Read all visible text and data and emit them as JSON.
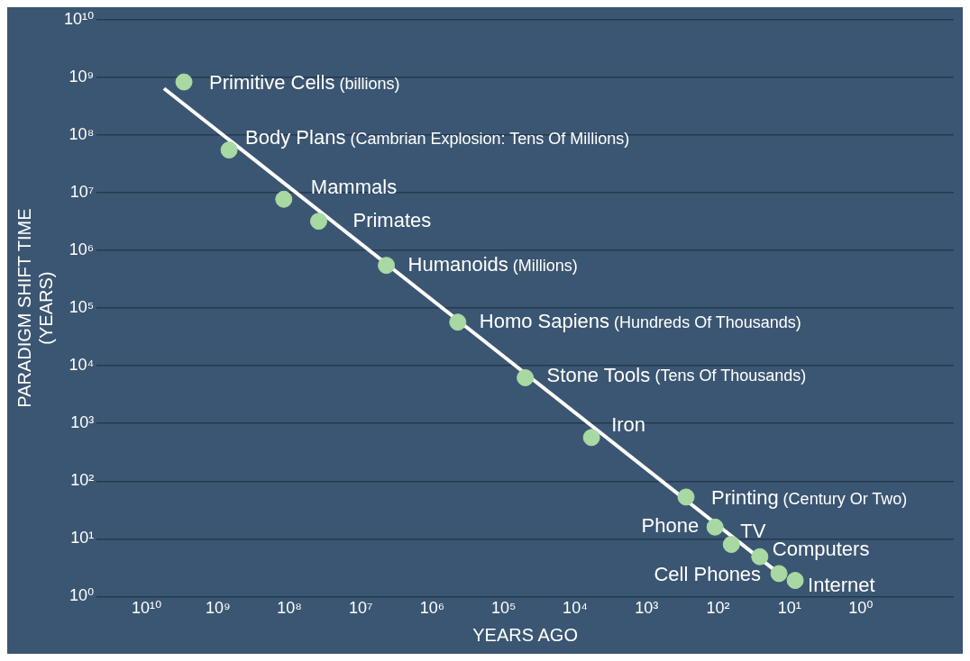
{
  "chart_data": {
    "type": "scatter",
    "xlabel": "YEARS AGO",
    "ylabel": "PARADIGM SHIFT TIME\n(YEARS)",
    "log": "xy",
    "grid": "y",
    "legend": false,
    "marker": "circle",
    "xlim": [
      50000000000,
      0.05
    ],
    "ylim": [
      1,
      10000000000
    ],
    "xticks": [
      {
        "value": 10000000000,
        "label": "10¹⁰"
      },
      {
        "value": 1000000000,
        "label": "10⁹"
      },
      {
        "value": 100000000,
        "label": "10⁸"
      },
      {
        "value": 10000000,
        "label": "10⁷"
      },
      {
        "value": 1000000,
        "label": "10⁶"
      },
      {
        "value": 100000,
        "label": "10⁵"
      },
      {
        "value": 10000,
        "label": "10⁴"
      },
      {
        "value": 1000,
        "label": "10³"
      },
      {
        "value": 100,
        "label": "10²"
      },
      {
        "value": 10,
        "label": "10¹"
      },
      {
        "value": 1,
        "label": "10⁰"
      }
    ],
    "yticks": [
      {
        "value": 1,
        "label": "10⁰"
      },
      {
        "value": 10,
        "label": "10¹"
      },
      {
        "value": 100,
        "label": "10²"
      },
      {
        "value": 1000,
        "label": "10³"
      },
      {
        "value": 10000,
        "label": "10⁴"
      },
      {
        "value": 100000,
        "label": "10⁵"
      },
      {
        "value": 1000000,
        "label": "10⁶"
      },
      {
        "value": 10000000,
        "label": "10⁷"
      },
      {
        "value": 100000000,
        "label": "10⁸"
      },
      {
        "value": 1000000000,
        "label": "10⁹"
      },
      {
        "value": 10000000000,
        "label": "10¹⁰"
      }
    ],
    "series": [
      {
        "type": "line",
        "color": "#ffffff",
        "marker": "none",
        "x": [
          5700000000,
          14
        ],
        "values": [
          640000000,
          2.5
        ]
      },
      {
        "type": "scatter",
        "color": "#a9d9a2",
        "x": [
          3000000000,
          700000000,
          120000000,
          39000000,
          4400000,
          440000,
          50000,
          5900,
          280,
          110,
          65,
          26,
          14,
          8.3
        ],
        "values": [
          830000000,
          55000000,
          7700000,
          3200000,
          550000,
          57000,
          6200,
          570,
          53,
          16,
          8,
          4.9,
          2.5,
          1.9
        ]
      }
    ],
    "annotations": [
      {
        "text": "Primitive Cells (billions)",
        "x": 3000000000,
        "y": 830000000
      },
      {
        "text": "Body Plans (Cambrian Explosion: Tens Of Millions)",
        "x": 700000000,
        "y": 55000000
      },
      {
        "text": "Mammals",
        "x": 120000000,
        "y": 7700000
      },
      {
        "text": "Primates",
        "x": 39000000,
        "y": 3200000
      },
      {
        "text": "Humanoids (Millions)",
        "x": 4400000,
        "y": 550000
      },
      {
        "text": "Homo Sapiens (Hundreds Of Thousands)",
        "x": 440000,
        "y": 57000
      },
      {
        "text": "Stone Tools (Tens Of Thousands)",
        "x": 50000,
        "y": 6200
      },
      {
        "text": "Iron",
        "x": 5900,
        "y": 570
      },
      {
        "text": "Printing (Century Or Two)",
        "x": 280,
        "y": 53
      },
      {
        "text": "Phone",
        "x": 110,
        "y": 16
      },
      {
        "text": "TV",
        "x": 65,
        "y": 8
      },
      {
        "text": "Computers",
        "x": 26,
        "y": 4.9
      },
      {
        "text": "Cell Phones",
        "x": 14,
        "y": 2.5
      },
      {
        "text": "Internet",
        "x": 8.3,
        "y": 1.9
      }
    ]
  }
}
